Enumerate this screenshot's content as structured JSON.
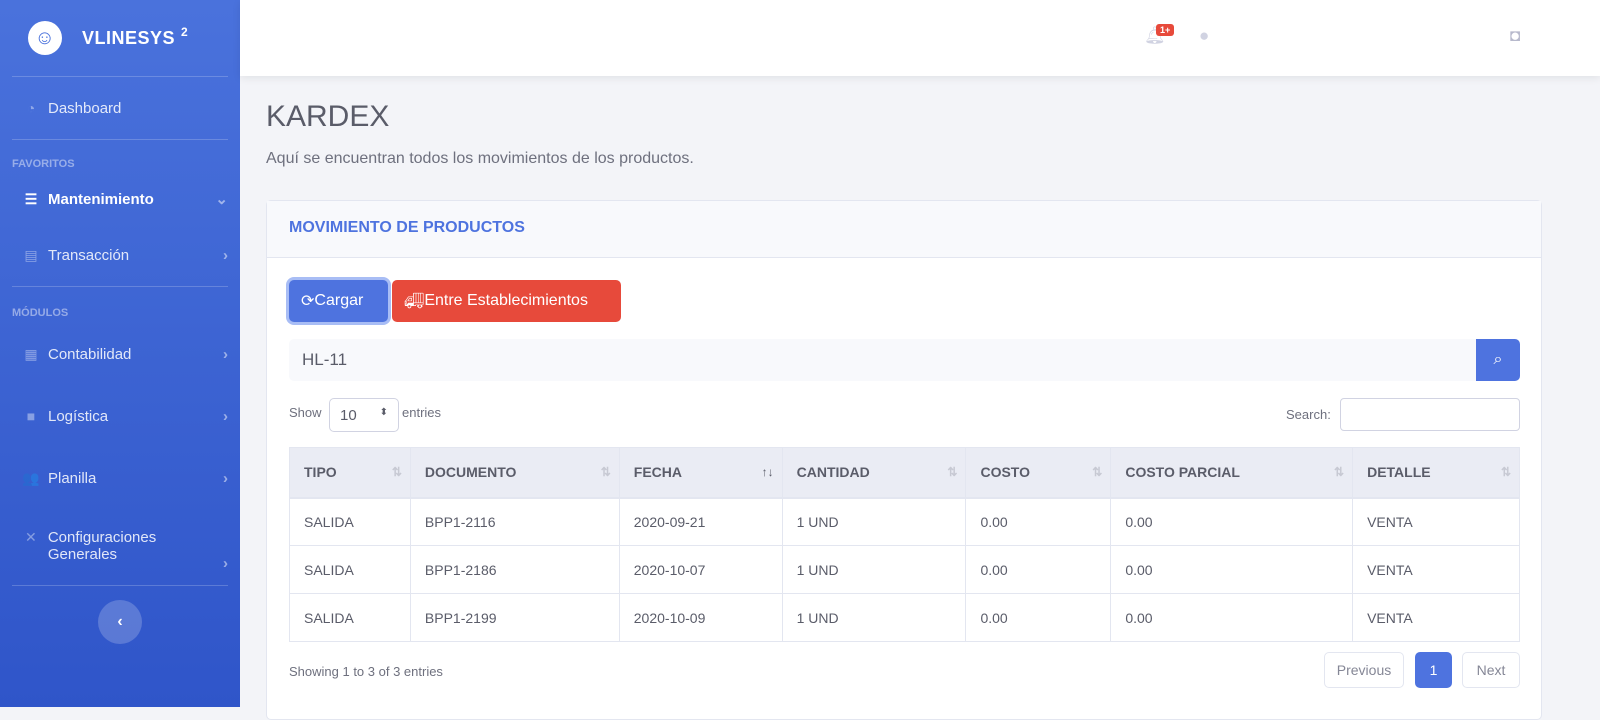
{
  "sidebar": {
    "brand": "VLINESYS",
    "brand_sup": "2",
    "dashboard": "Dashboard",
    "fav_heading": "FAVORITOS",
    "mod_heading": "MÓDULOS",
    "items": [
      {
        "label": "Mantenimiento"
      },
      {
        "label": "Transacción"
      },
      {
        "label": "Contabilidad"
      },
      {
        "label": "Logística"
      },
      {
        "label": "Planilla"
      },
      {
        "label": "Configuraciones Generales"
      }
    ]
  },
  "topbar": {
    "notif_badge": "1+"
  },
  "page": {
    "title": "KARDEX",
    "subtitle": "Aquí se encuentran todos los movimientos de los productos."
  },
  "card": {
    "title": "MOVIMIENTO DE PRODUCTOS",
    "cargar": "Cargar",
    "entre": "Entre Establecimientos",
    "search_value": "HL-11",
    "show": "Show",
    "entries": "entries",
    "page_size": "10",
    "search_label": "Search:",
    "columns": [
      "TIPO",
      "DOCUMENTO",
      "FECHA",
      "CANTIDAD",
      "COSTO",
      "COSTO PARCIAL",
      "DETALLE"
    ],
    "rows": [
      [
        "SALIDA",
        "BPP1-2116",
        "2020-09-21",
        "1 UND",
        "0.00",
        "0.00",
        "VENTA"
      ],
      [
        "SALIDA",
        "BPP1-2186",
        "2020-10-07",
        "1 UND",
        "0.00",
        "0.00",
        "VENTA"
      ],
      [
        "SALIDA",
        "BPP1-2199",
        "2020-10-09",
        "1 UND",
        "0.00",
        "0.00",
        "VENTA"
      ]
    ],
    "info": "Showing 1 to 3 of 3 entries",
    "previous": "Previous",
    "page": "1",
    "next": "Next"
  },
  "colors": {
    "primary": "#4e73df",
    "danger": "#e74a3b"
  }
}
